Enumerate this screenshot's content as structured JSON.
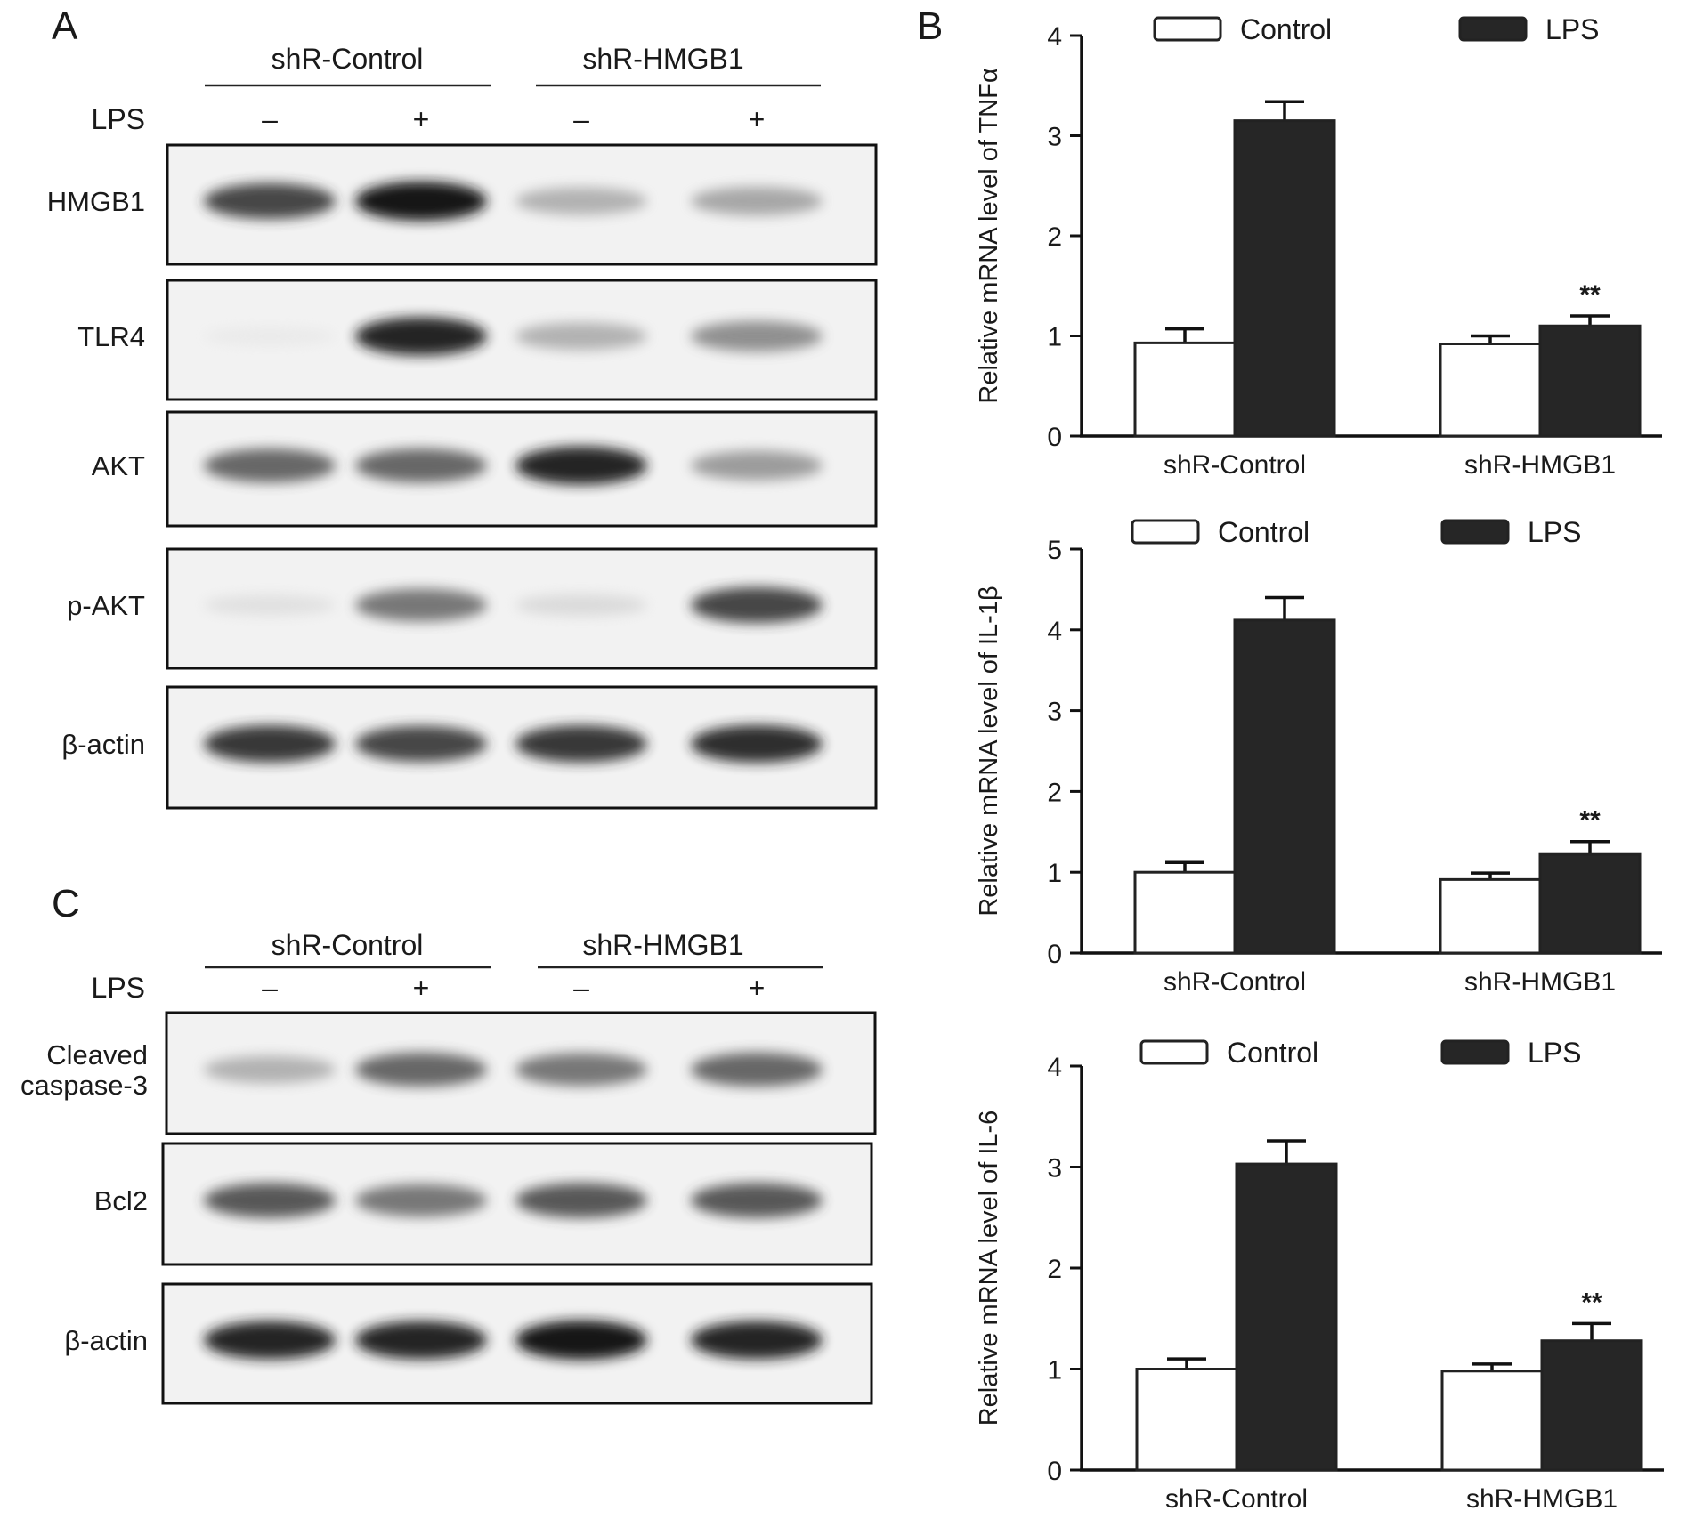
{
  "panels": {
    "A": {
      "letter": "A",
      "group_labels": [
        "shR-Control",
        "shR-HMGB1"
      ],
      "treatment_label": "LPS",
      "lane_signs": [
        "–",
        "+",
        "–",
        "+"
      ],
      "blots": [
        {
          "label": "HMGB1",
          "intensities": [
            0.85,
            1.0,
            0.45,
            0.5
          ]
        },
        {
          "label": "TLR4",
          "intensities": [
            0.05,
            0.95,
            0.45,
            0.6
          ]
        },
        {
          "label": "AKT",
          "intensities": [
            0.75,
            0.75,
            0.95,
            0.55
          ]
        },
        {
          "label": "p-AKT",
          "intensities": [
            0.15,
            0.7,
            0.2,
            0.85
          ]
        },
        {
          "label": "β-actin",
          "intensities": [
            0.9,
            0.85,
            0.9,
            0.92
          ]
        }
      ]
    },
    "C": {
      "letter": "C",
      "group_labels": [
        "shR-Control",
        "shR-HMGB1"
      ],
      "treatment_label": "LPS",
      "lane_signs": [
        "–",
        "+",
        "–",
        "+"
      ],
      "blots": [
        {
          "label": "Cleaved\ncaspase-3",
          "intensities": [
            0.45,
            0.75,
            0.7,
            0.75
          ]
        },
        {
          "label": "Bcl2",
          "intensities": [
            0.8,
            0.7,
            0.8,
            0.8
          ]
        },
        {
          "label": "β-actin",
          "intensities": [
            0.95,
            0.95,
            1.0,
            0.95
          ]
        }
      ]
    },
    "B": {
      "letter": "B"
    }
  },
  "chart_data": [
    {
      "type": "bar",
      "categories": [
        "shR-Control",
        "shR-HMGB1"
      ],
      "series": [
        {
          "name": "Control",
          "values": [
            0.93,
            0.92
          ],
          "errors": [
            0.14,
            0.08
          ],
          "color": "#ffffff"
        },
        {
          "name": "LPS",
          "values": [
            3.15,
            1.1
          ],
          "errors": [
            0.19,
            0.1
          ],
          "color": "#262626"
        }
      ],
      "significance": [
        "",
        "**"
      ],
      "ylabel": "Relative mRNA level of TNFα",
      "ylim": [
        0,
        4
      ],
      "yticks": [
        0,
        1,
        2,
        3,
        4
      ],
      "legend": "top"
    },
    {
      "type": "bar",
      "categories": [
        "shR-Control",
        "shR-HMGB1"
      ],
      "series": [
        {
          "name": "Control",
          "values": [
            1.0,
            0.91
          ],
          "errors": [
            0.12,
            0.08
          ],
          "color": "#ffffff"
        },
        {
          "name": "LPS",
          "values": [
            4.12,
            1.22
          ],
          "errors": [
            0.28,
            0.16
          ],
          "color": "#262626"
        }
      ],
      "significance": [
        "",
        "**"
      ],
      "ylabel": "Relative mRNA level of IL-1β",
      "ylim": [
        0,
        5
      ],
      "yticks": [
        0,
        1,
        2,
        3,
        4,
        5
      ],
      "legend": "top"
    },
    {
      "type": "bar",
      "categories": [
        "shR-Control",
        "shR-HMGB1"
      ],
      "series": [
        {
          "name": "Control",
          "values": [
            1.0,
            0.98
          ],
          "errors": [
            0.1,
            0.07
          ],
          "color": "#ffffff"
        },
        {
          "name": "LPS",
          "values": [
            3.03,
            1.28
          ],
          "errors": [
            0.23,
            0.17
          ],
          "color": "#262626"
        }
      ],
      "significance": [
        "",
        "**"
      ],
      "ylabel": "Relative mRNA level of IL-6",
      "ylim": [
        0,
        4
      ],
      "yticks": [
        0,
        1,
        2,
        3,
        4
      ],
      "legend": "top"
    }
  ]
}
